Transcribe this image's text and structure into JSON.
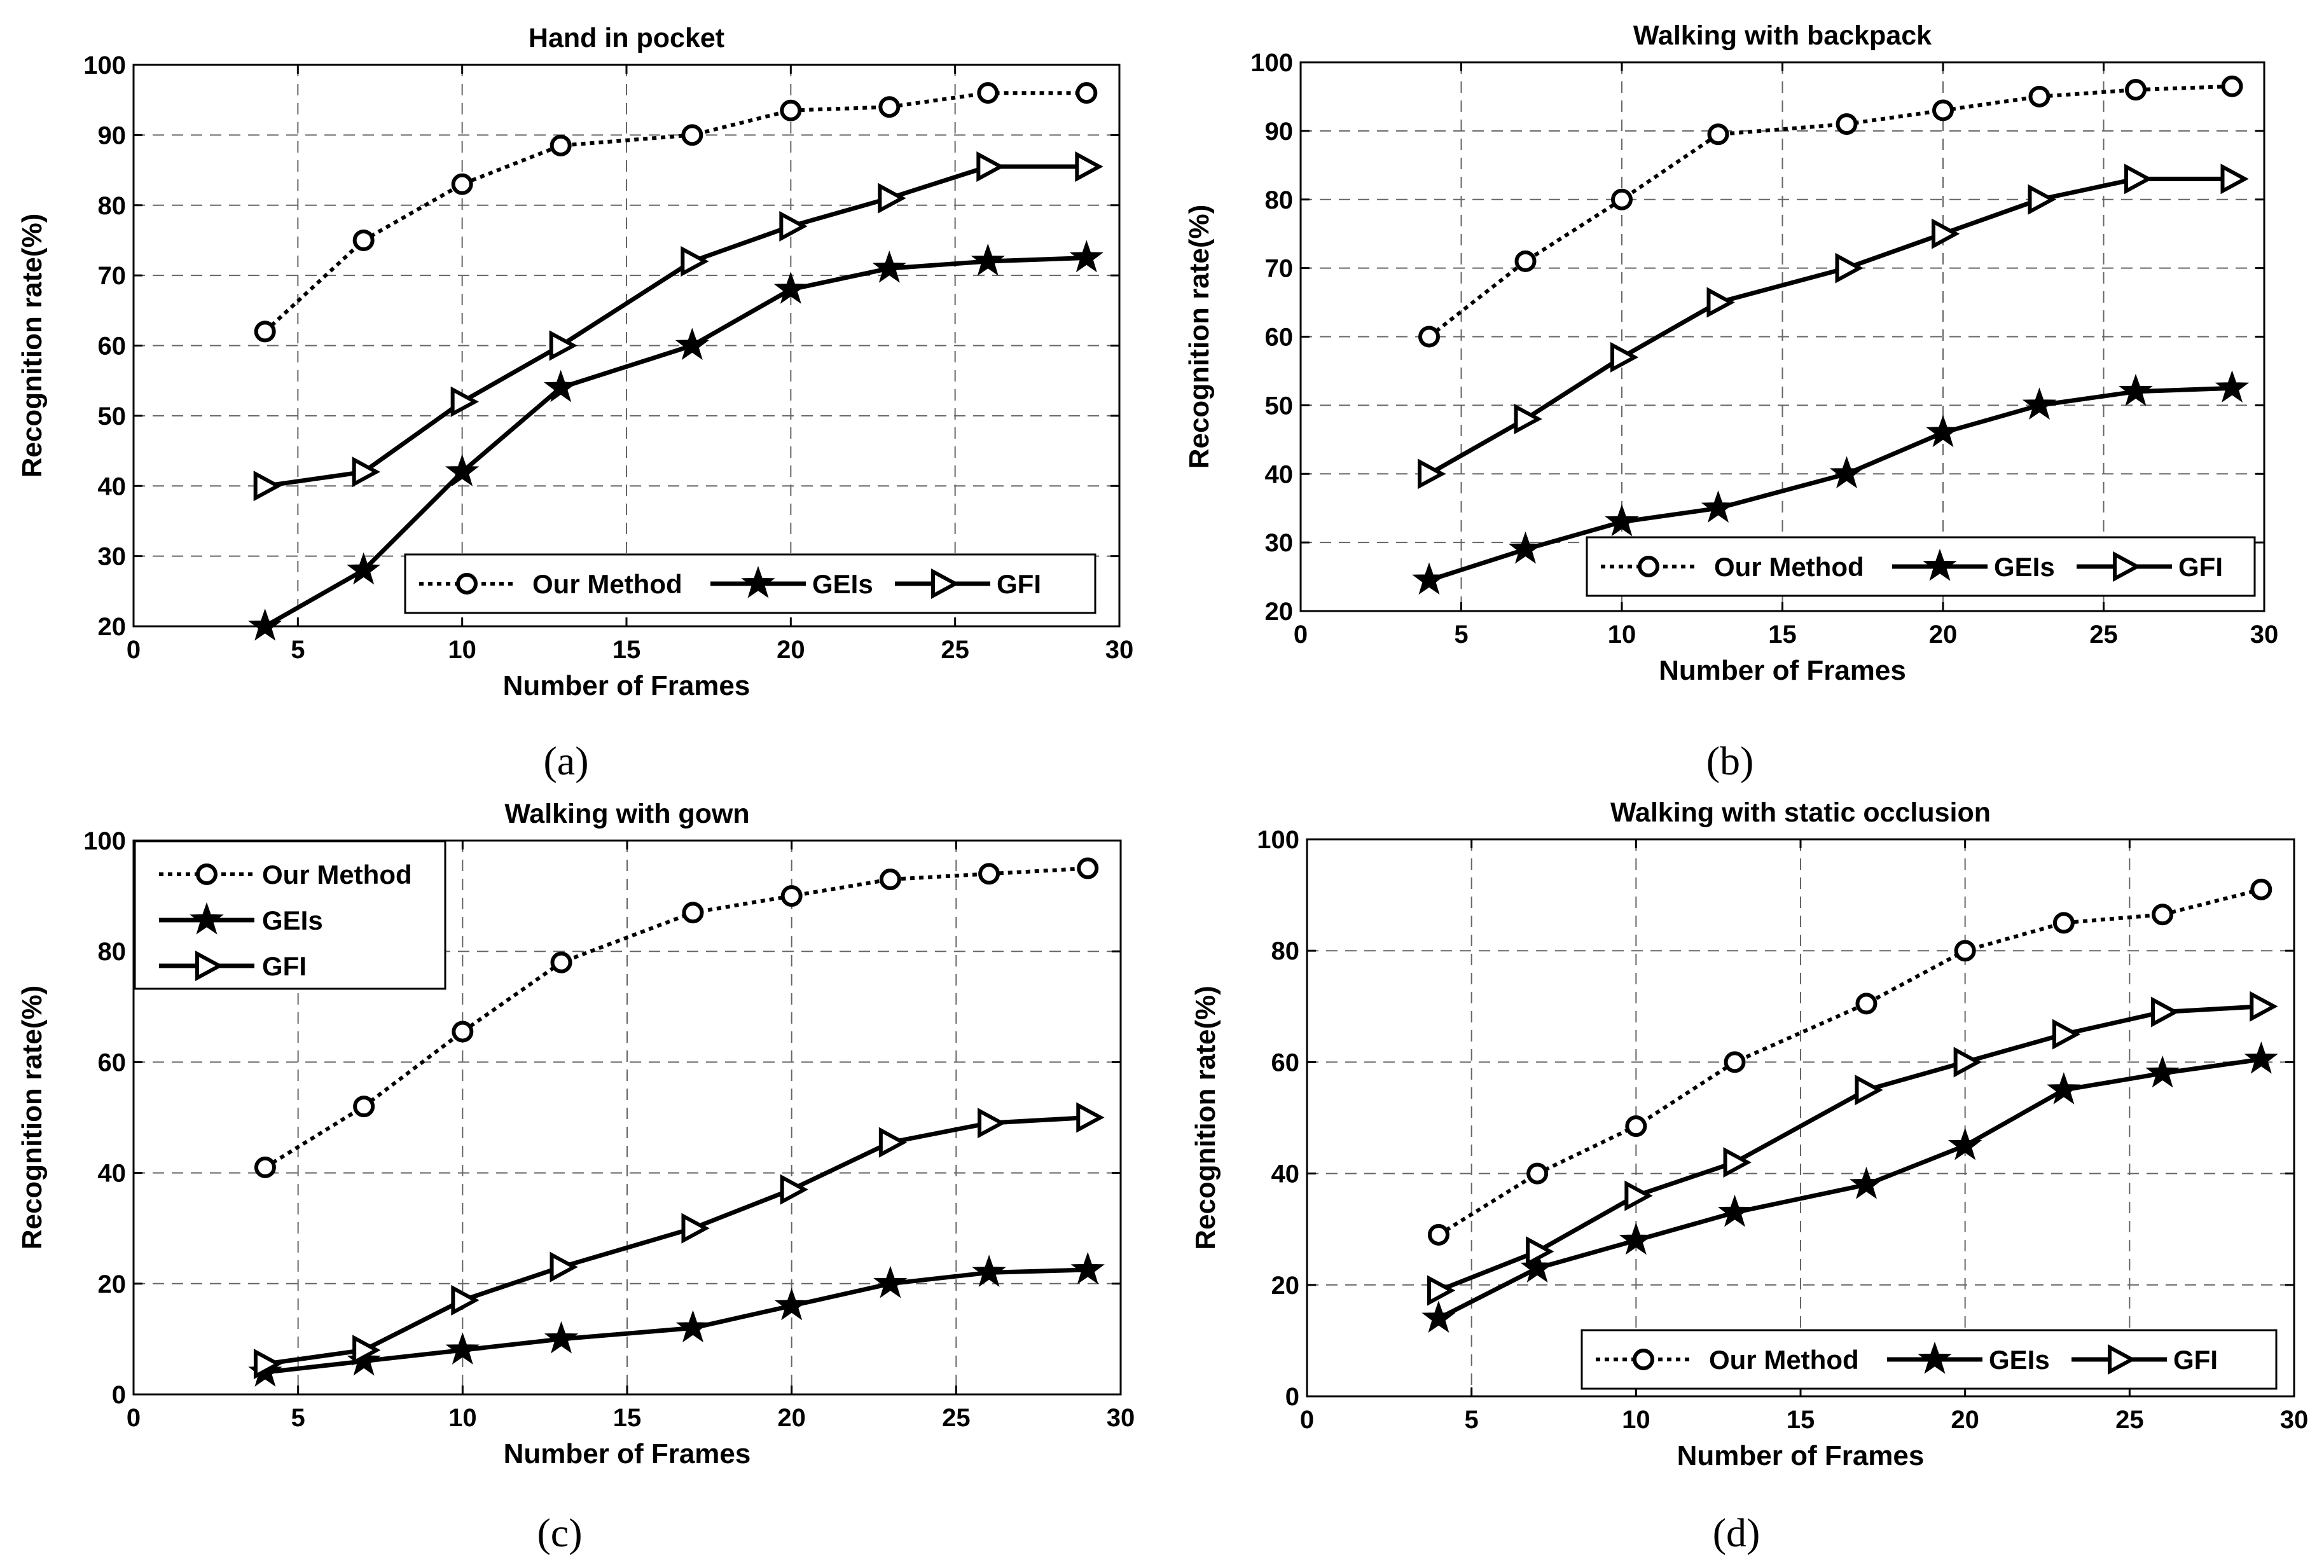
{
  "chart_data": [
    {
      "type": "line",
      "panel": "(a)",
      "title": "Hand in pocket",
      "xlabel": "Number of Frames",
      "ylabel": "Recognition rate(%)",
      "xlim": [
        0,
        30
      ],
      "ylim": [
        20,
        100
      ],
      "xticks": [
        "0",
        "5",
        "10",
        "15",
        "20",
        "25",
        "30"
      ],
      "yticks": [
        "20",
        "30",
        "40",
        "50",
        "60",
        "70",
        "80",
        "90",
        "100"
      ],
      "grid": true,
      "legend_position": "bottom-right",
      "legend_layout": "horizontal",
      "x": [
        4,
        7,
        10,
        13,
        17,
        20,
        23,
        26,
        29
      ],
      "series": [
        {
          "name": "Our Method",
          "marker": "circle",
          "line": "dotted",
          "values": [
            62,
            75,
            83,
            88.5,
            90,
            93.5,
            94,
            96,
            96
          ]
        },
        {
          "name": "GEIs",
          "marker": "star",
          "line": "solid",
          "values": [
            20,
            28,
            42,
            54,
            60,
            68,
            71,
            72,
            72.5
          ]
        },
        {
          "name": "GFI",
          "marker": "triangle-right",
          "line": "solid",
          "values": [
            40,
            42,
            52,
            60,
            72,
            77,
            81,
            85.5,
            85.5
          ]
        }
      ]
    },
    {
      "type": "line",
      "panel": "(b)",
      "title": "Walking with backpack",
      "xlabel": "Number of Frames",
      "ylabel": "Recognition rate(%)",
      "xlim": [
        0,
        30
      ],
      "ylim": [
        20,
        100
      ],
      "xticks": [
        "0",
        "5",
        "10",
        "15",
        "20",
        "25",
        "30"
      ],
      "yticks": [
        "20",
        "30",
        "40",
        "50",
        "60",
        "70",
        "80",
        "90",
        "100"
      ],
      "grid": true,
      "legend_position": "bottom-right",
      "legend_layout": "horizontal",
      "x": [
        4,
        7,
        10,
        13,
        17,
        20,
        23,
        26,
        29
      ],
      "series": [
        {
          "name": "Our Method",
          "marker": "circle",
          "line": "dotted",
          "values": [
            60,
            71,
            80,
            89.5,
            91,
            93,
            95,
            96,
            96.5
          ]
        },
        {
          "name": "GEIs",
          "marker": "star",
          "line": "solid",
          "values": [
            24.5,
            29,
            33,
            35,
            40,
            46,
            50,
            52,
            52.5
          ]
        },
        {
          "name": "GFI",
          "marker": "triangle-right",
          "line": "solid",
          "values": [
            40,
            48,
            57,
            65,
            70,
            75,
            80,
            83,
            83
          ]
        }
      ]
    },
    {
      "type": "line",
      "panel": "(c)",
      "title": "Walking with gown",
      "xlabel": "Number of Frames",
      "ylabel": "Recognition rate(%)",
      "xlim": [
        0,
        30
      ],
      "ylim": [
        0,
        100
      ],
      "xticks": [
        "0",
        "5",
        "10",
        "15",
        "20",
        "25",
        "30"
      ],
      "yticks": [
        "0",
        "20",
        "40",
        "60",
        "80",
        "100"
      ],
      "grid": true,
      "legend_position": "top-left",
      "legend_layout": "vertical",
      "x": [
        4,
        7,
        10,
        13,
        17,
        20,
        23,
        26,
        29
      ],
      "series": [
        {
          "name": "Our Method",
          "marker": "circle",
          "line": "dotted",
          "values": [
            41,
            52,
            65.5,
            78,
            87,
            90,
            93,
            94,
            95
          ]
        },
        {
          "name": "GEIs",
          "marker": "star",
          "line": "solid",
          "values": [
            4,
            6,
            8,
            10,
            12,
            16,
            20,
            22,
            22.5
          ]
        },
        {
          "name": "GFI",
          "marker": "triangle-right",
          "line": "solid",
          "values": [
            5.5,
            8,
            17,
            23,
            30,
            37,
            45.5,
            49,
            50
          ]
        }
      ]
    },
    {
      "type": "line",
      "panel": "(d)",
      "title": "Walking with static occlusion",
      "xlabel": "Number of Frames",
      "ylabel": "Recognition rate(%)",
      "xlim": [
        0,
        30
      ],
      "ylim": [
        0,
        100
      ],
      "xticks": [
        "0",
        "5",
        "10",
        "15",
        "20",
        "25",
        "30"
      ],
      "yticks": [
        "0",
        "20",
        "40",
        "60",
        "80",
        "100"
      ],
      "grid": true,
      "legend_position": "bottom-right",
      "legend_layout": "horizontal",
      "x": [
        4,
        7,
        10,
        13,
        17,
        20,
        23,
        26,
        29
      ],
      "series": [
        {
          "name": "Our Method",
          "marker": "circle",
          "line": "dotted",
          "values": [
            29,
            40,
            48.5,
            60,
            70.5,
            80,
            85,
            86.5,
            91
          ]
        },
        {
          "name": "GEIs",
          "marker": "star",
          "line": "solid",
          "values": [
            14,
            23,
            28,
            33,
            38,
            45,
            55,
            58,
            60.5
          ]
        },
        {
          "name": "GFI",
          "marker": "triangle-right",
          "line": "solid",
          "values": [
            19,
            26,
            36,
            42,
            55,
            60,
            65,
            69,
            70
          ]
        }
      ]
    }
  ]
}
